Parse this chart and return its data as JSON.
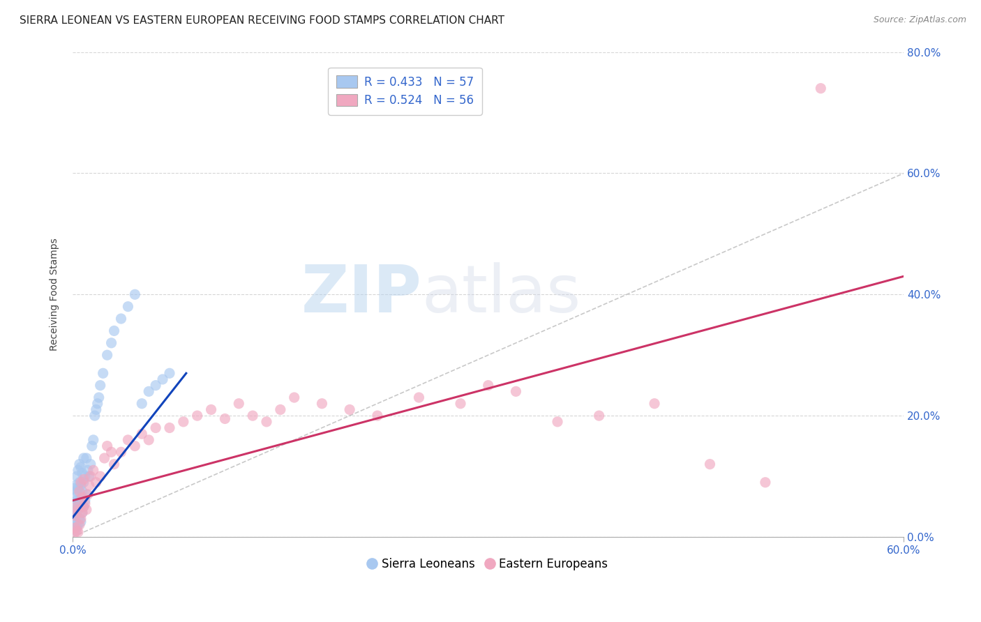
{
  "title": "SIERRA LEONEAN VS EASTERN EUROPEAN RECEIVING FOOD STAMPS CORRELATION CHART",
  "source": "Source: ZipAtlas.com",
  "ylabel": "Receiving Food Stamps",
  "xlim": [
    0.0,
    0.6
  ],
  "ylim": [
    0.0,
    0.8
  ],
  "xticks": [
    0.0,
    0.6
  ],
  "yticks": [
    0.0,
    0.2,
    0.4,
    0.6,
    0.8
  ],
  "color_blue": "#a8c8f0",
  "color_pink": "#f0a8c0",
  "line_blue": "#1144bb",
  "line_pink": "#cc3366",
  "diag_color": "#bbbbbb",
  "background_color": "#ffffff",
  "sl_x": [
    0.001,
    0.001,
    0.001,
    0.002,
    0.002,
    0.002,
    0.002,
    0.002,
    0.003,
    0.003,
    0.003,
    0.003,
    0.003,
    0.004,
    0.004,
    0.004,
    0.004,
    0.005,
    0.005,
    0.005,
    0.005,
    0.006,
    0.006,
    0.006,
    0.006,
    0.007,
    0.007,
    0.007,
    0.008,
    0.008,
    0.008,
    0.009,
    0.009,
    0.01,
    0.01,
    0.011,
    0.012,
    0.013,
    0.014,
    0.015,
    0.016,
    0.017,
    0.018,
    0.019,
    0.02,
    0.022,
    0.025,
    0.028,
    0.03,
    0.035,
    0.04,
    0.045,
    0.05,
    0.055,
    0.06,
    0.065,
    0.07
  ],
  "sl_y": [
    0.03,
    0.055,
    0.08,
    0.01,
    0.025,
    0.045,
    0.065,
    0.085,
    0.015,
    0.04,
    0.06,
    0.075,
    0.1,
    0.02,
    0.05,
    0.08,
    0.11,
    0.03,
    0.06,
    0.09,
    0.12,
    0.025,
    0.055,
    0.085,
    0.115,
    0.04,
    0.075,
    0.105,
    0.05,
    0.09,
    0.13,
    0.06,
    0.1,
    0.07,
    0.13,
    0.11,
    0.1,
    0.12,
    0.15,
    0.16,
    0.2,
    0.21,
    0.22,
    0.23,
    0.25,
    0.27,
    0.3,
    0.32,
    0.34,
    0.36,
    0.38,
    0.4,
    0.22,
    0.24,
    0.25,
    0.26,
    0.27
  ],
  "ee_x": [
    0.001,
    0.002,
    0.002,
    0.003,
    0.003,
    0.004,
    0.004,
    0.005,
    0.005,
    0.006,
    0.006,
    0.007,
    0.007,
    0.008,
    0.008,
    0.009,
    0.01,
    0.011,
    0.012,
    0.013,
    0.015,
    0.017,
    0.02,
    0.023,
    0.025,
    0.028,
    0.03,
    0.035,
    0.04,
    0.045,
    0.05,
    0.055,
    0.06,
    0.07,
    0.08,
    0.09,
    0.1,
    0.11,
    0.12,
    0.13,
    0.14,
    0.15,
    0.16,
    0.18,
    0.2,
    0.22,
    0.25,
    0.28,
    0.3,
    0.32,
    0.35,
    0.38,
    0.42,
    0.46,
    0.5,
    0.54
  ],
  "ee_y": [
    0.005,
    0.015,
    0.035,
    0.01,
    0.05,
    0.008,
    0.045,
    0.02,
    0.075,
    0.03,
    0.09,
    0.04,
    0.065,
    0.05,
    0.095,
    0.055,
    0.045,
    0.07,
    0.085,
    0.1,
    0.11,
    0.09,
    0.1,
    0.13,
    0.15,
    0.14,
    0.12,
    0.14,
    0.16,
    0.15,
    0.17,
    0.16,
    0.18,
    0.18,
    0.19,
    0.2,
    0.21,
    0.195,
    0.22,
    0.2,
    0.19,
    0.21,
    0.23,
    0.22,
    0.21,
    0.2,
    0.23,
    0.22,
    0.25,
    0.24,
    0.19,
    0.2,
    0.22,
    0.12,
    0.09,
    0.74
  ],
  "sl_trend_x": [
    0.0,
    0.082
  ],
  "sl_trend_y": [
    0.032,
    0.27
  ],
  "ee_trend_x": [
    0.0,
    0.6
  ],
  "ee_trend_y": [
    0.06,
    0.43
  ],
  "watermark_zip": "ZIP",
  "watermark_atlas": "atlas",
  "title_fontsize": 11,
  "axis_label_fontsize": 10,
  "tick_fontsize": 11,
  "legend_fontsize": 12
}
